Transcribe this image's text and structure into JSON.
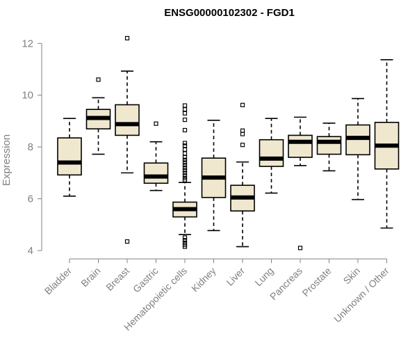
{
  "chart_data": {
    "type": "boxplot",
    "title": "ENSG00000102302 - FGD1",
    "ylabel": "Expression",
    "xlabel": "",
    "ylim": [
      4,
      12.6
    ],
    "yticks": [
      4,
      6,
      8,
      10,
      12
    ],
    "grid": false,
    "colors": {
      "box_fill": "#efe8cf",
      "box_stroke": "#000000",
      "axis": "#808080"
    },
    "categories": [
      "Bladder",
      "Brain",
      "Breast",
      "Gastric",
      "Hematopoietic cells",
      "Kidney",
      "Liver",
      "Lung",
      "Pancreas",
      "Prostate",
      "Skin",
      "Unknown / Other"
    ],
    "boxes": [
      {
        "category": "Bladder",
        "whisker_low": 6.1,
        "q1": 6.92,
        "median": 7.4,
        "q3": 8.35,
        "whisker_high": 9.1,
        "outliers": []
      },
      {
        "category": "Brain",
        "whisker_low": 7.72,
        "q1": 8.7,
        "median": 9.12,
        "q3": 9.45,
        "whisker_high": 9.9,
        "outliers": [
          10.6
        ]
      },
      {
        "category": "Breast",
        "whisker_low": 7.0,
        "q1": 8.45,
        "median": 8.88,
        "q3": 9.63,
        "whisker_high": 10.93,
        "outliers": [
          12.2,
          4.35
        ]
      },
      {
        "category": "Gastric",
        "whisker_low": 6.32,
        "q1": 6.6,
        "median": 6.86,
        "q3": 7.38,
        "whisker_high": 8.2,
        "outliers": [
          8.9
        ]
      },
      {
        "category": "Hematopoietic cells",
        "whisker_low": 4.62,
        "q1": 5.3,
        "median": 5.6,
        "q3": 5.87,
        "whisker_high": 6.63,
        "outliers": [
          9.6,
          9.45,
          9.3,
          9.05,
          8.65,
          8.15,
          8.05,
          7.9,
          7.75,
          7.6,
          7.5,
          7.4,
          7.3,
          7.2,
          7.1,
          7.0,
          6.9,
          6.8,
          6.72,
          4.5,
          4.4,
          4.3,
          4.22,
          4.15
        ]
      },
      {
        "category": "Kidney",
        "whisker_low": 4.77,
        "q1": 6.05,
        "median": 6.82,
        "q3": 7.57,
        "whisker_high": 9.03,
        "outliers": []
      },
      {
        "category": "Liver",
        "whisker_low": 4.15,
        "q1": 5.53,
        "median": 6.05,
        "q3": 6.52,
        "whisker_high": 7.42,
        "outliers": [
          9.62,
          8.63,
          8.5,
          8.08
        ]
      },
      {
        "category": "Lung",
        "whisker_low": 6.22,
        "q1": 7.25,
        "median": 7.55,
        "q3": 8.28,
        "whisker_high": 9.1,
        "outliers": []
      },
      {
        "category": "Pancreas",
        "whisker_low": 7.28,
        "q1": 7.6,
        "median": 8.2,
        "q3": 8.45,
        "whisker_high": 9.15,
        "outliers": [
          4.1
        ]
      },
      {
        "category": "Prostate",
        "whisker_low": 7.08,
        "q1": 7.72,
        "median": 8.2,
        "q3": 8.4,
        "whisker_high": 8.92,
        "outliers": []
      },
      {
        "category": "Skin",
        "whisker_low": 5.97,
        "q1": 7.7,
        "median": 8.35,
        "q3": 8.85,
        "whisker_high": 9.87,
        "outliers": []
      },
      {
        "category": "Unknown / Other",
        "whisker_low": 4.87,
        "q1": 7.15,
        "median": 8.05,
        "q3": 8.95,
        "whisker_high": 11.37,
        "outliers": []
      }
    ]
  }
}
